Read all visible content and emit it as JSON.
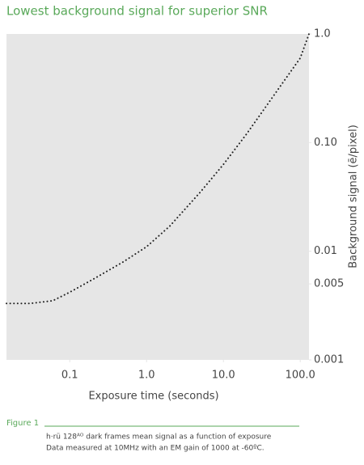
{
  "chart_data": {
    "type": "line",
    "title": "Lowest background signal for superior SNR",
    "xlabel": "Exposure time (seconds)",
    "ylabel": "Background signal (ē/pixel)",
    "xscale": "log",
    "yscale": "log",
    "x": [
      0.015,
      0.03,
      0.06,
      0.1,
      0.2,
      0.5,
      1,
      2,
      5,
      10,
      20,
      50,
      100,
      130
    ],
    "series": [
      {
        "color": "#222222",
        "values": [
          0.0033,
          0.0033,
          0.0035,
          0.0042,
          0.0055,
          0.008,
          0.011,
          0.017,
          0.035,
          0.063,
          0.12,
          0.3,
          0.6,
          1.0
        ]
      }
    ],
    "xlim": [
      0.015,
      130
    ],
    "ylim": [
      0.001,
      1
    ],
    "xticks": [
      0.1,
      {
        "value": 1,
        "label": "1.0"
      },
      {
        "value": 10,
        "label": "10.0"
      },
      {
        "value": 100,
        "label": "100.0"
      }
    ],
    "yticks": [
      {
        "value": 1,
        "label": "1.0"
      },
      {
        "value": 0.1,
        "label": "0.10"
      },
      0.01,
      0.005,
      0.001
    ],
    "figure_label": "Figure 1",
    "caption": [
      "h·rü 128ᴬᴼ dark frames mean signal as a function of exposure",
      "Data measured at 10MHz with an EM gain of 1000 at -60ºC."
    ]
  }
}
